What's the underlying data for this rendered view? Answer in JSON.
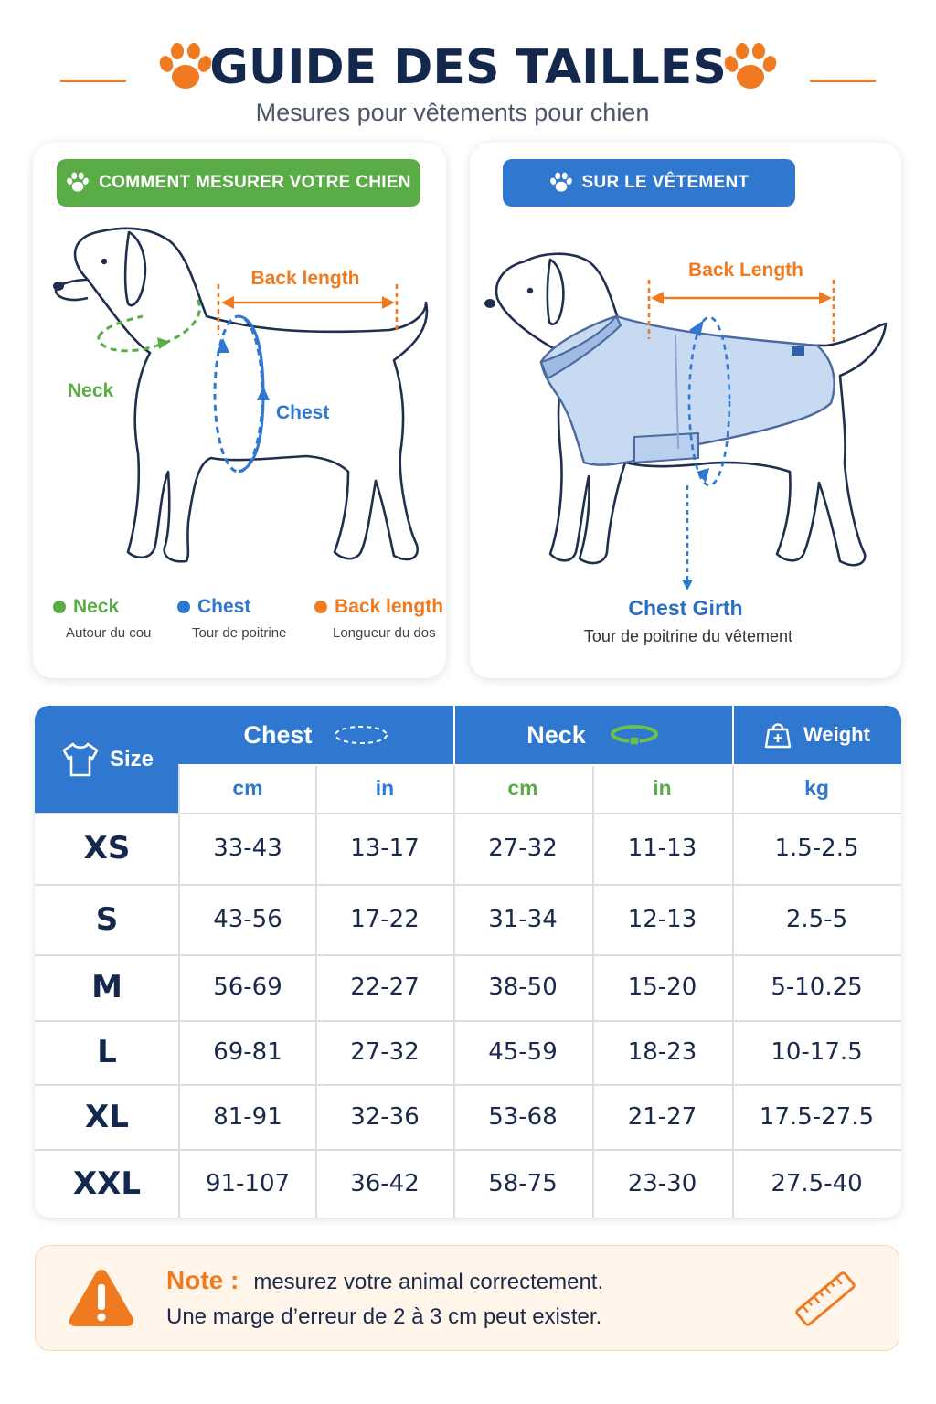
{
  "header": {
    "title": "GUIDE DES TAILLES",
    "subtitle": "Mesures pour vêtements pour chien",
    "accent_color": "#ef7a20"
  },
  "left_panel": {
    "pill_label": "COMMENT MESURER VOTRE CHIEN",
    "pill_icon": "paw-icon",
    "pill_color": "#5aad46",
    "diagram_labels": {
      "back_length": "Back length",
      "neck": "Neck",
      "chest": "Chest"
    },
    "legend": [
      {
        "label": "Neck",
        "sub": "Autour du cou",
        "color": "#5aad46"
      },
      {
        "label": "Chest",
        "sub": "Tour de poitrine",
        "color": "#2f77cf"
      },
      {
        "label": "Back length",
        "sub": "Longueur du dos",
        "color": "#ef7a20"
      }
    ]
  },
  "right_panel": {
    "pill_label": "SUR LE VÊTEMENT",
    "pill_icon": "paw-icon",
    "pill_color": "#2f77cf",
    "diagram_labels": {
      "back_length": "Back Length"
    },
    "girth_title": "Chest Girth",
    "girth_sub": "Tour de poitrine du vêtement"
  },
  "table": {
    "size_header": "Size",
    "groups": [
      {
        "label": "Chest",
        "icon": "dashed-ring-icon"
      },
      {
        "label": "Neck",
        "icon": "collar-icon"
      },
      {
        "label": "Weight",
        "icon": "weight-icon"
      }
    ],
    "units": [
      "cm",
      "in",
      "cm",
      "in",
      "kg"
    ],
    "rows": [
      {
        "size": "XS",
        "values": [
          "33-43",
          "13-17",
          "27-32",
          "11-13",
          "1.5-2.5"
        ]
      },
      {
        "size": "S",
        "values": [
          "43-56",
          "17-22",
          "31-34",
          "12-13",
          "2.5-5"
        ]
      },
      {
        "size": "M",
        "values": [
          "56-69",
          "22-27",
          "38-50",
          "15-20",
          "5-10.25"
        ]
      },
      {
        "size": "L",
        "values": [
          "69-81",
          "27-32",
          "45-59",
          "18-23",
          "10-17.5"
        ]
      },
      {
        "size": "XL",
        "values": [
          "81-91",
          "32-36",
          "53-68",
          "21-27",
          "17.5-27.5"
        ]
      },
      {
        "size": "XXL",
        "values": [
          "91-107",
          "36-42",
          "58-75",
          "23-30",
          "27.5-40"
        ]
      }
    ]
  },
  "note": {
    "label": "Note :",
    "line1": "mesurez votre animal correctement.",
    "line2": "Une marge d’erreur de 2 à 3 cm peut exister.",
    "icons": [
      "warning-icon",
      "ruler-icon"
    ]
  }
}
